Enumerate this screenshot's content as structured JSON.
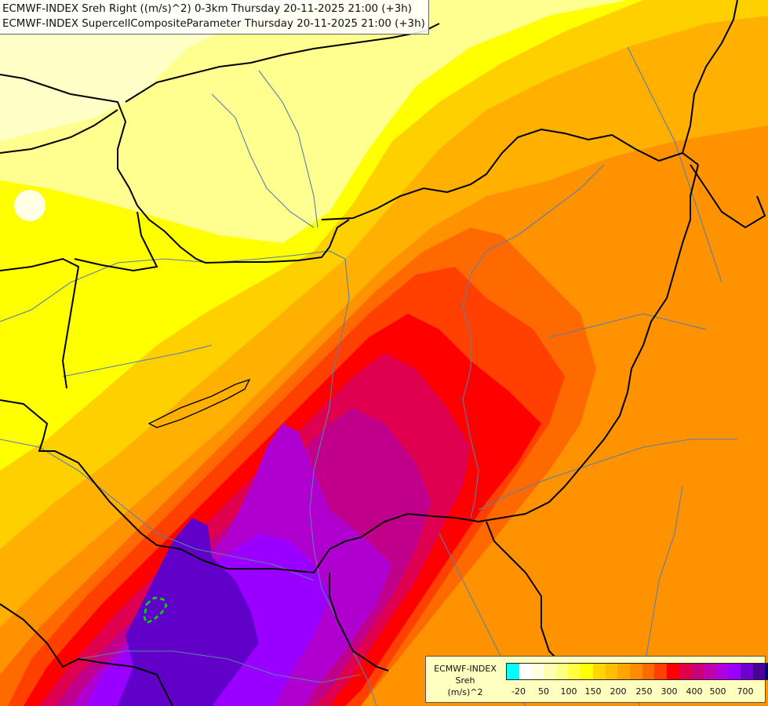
{
  "titles": {
    "line1": "ECMWF-INDEX Sreh Right ((m/s)^2) 0-3km Thursday 20-11-2025 21:00 (+3h)",
    "line2": "ECMWF-INDEX SupercellCompositeParameter Thursday 20-11-2025 21:00 (+3h)"
  },
  "legend": {
    "line1": "ECMWF-INDEX",
    "line2": "Sreh",
    "line3": "(m/s)^2",
    "colors": [
      "#00ffff",
      "#ffffff",
      "#ffffe0",
      "#ffffb0",
      "#ffff80",
      "#ffff40",
      "#ffff00",
      "#ffd700",
      "#ffbf00",
      "#ffa500",
      "#ff8c00",
      "#ff6a00",
      "#ff4000",
      "#ff0000",
      "#e0004a",
      "#c8007a",
      "#c000b0",
      "#b000e0",
      "#9a00ff",
      "#7000d0",
      "#4b0096",
      "#00007a"
    ],
    "ticks": [
      "-20",
      "50",
      "100",
      "150",
      "200",
      "250",
      "300",
      "400",
      "500",
      "700"
    ]
  },
  "map": {
    "field_colors": {
      "pale": "#ffffc8",
      "light_yellow": "#ffff90",
      "yellow": "#ffff00",
      "gold": "#ffd000",
      "light_orange": "#ffb000",
      "orange": "#ff9200",
      "dark_orange": "#ff6a00",
      "red_orange": "#ff4000",
      "red": "#ff0000",
      "crimson": "#e00050",
      "magenta": "#c0008a",
      "purple": "#b000d0",
      "violet": "#9a00ff",
      "indigo": "#6000c8",
      "white_spot": "#ffffff"
    },
    "border_color": "#000000",
    "river_color": "#5a7fa8",
    "scp_contour_color": "#00e000"
  }
}
